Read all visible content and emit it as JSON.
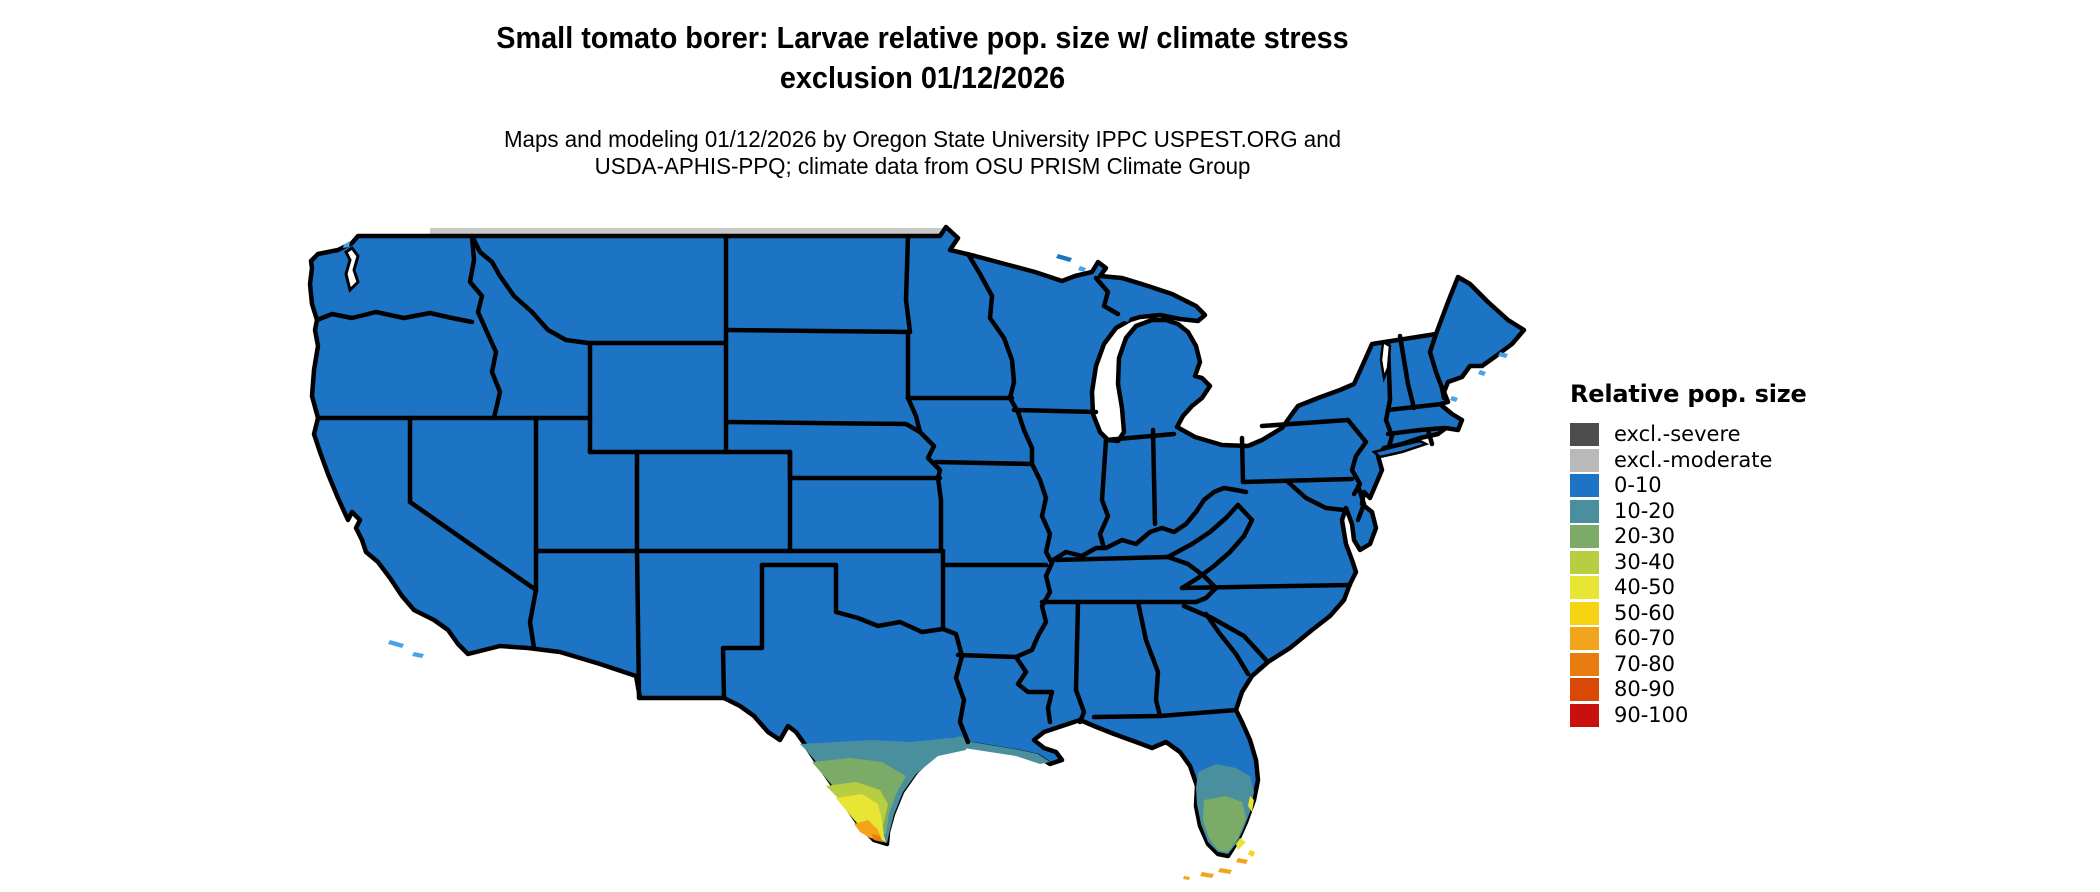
{
  "header": {
    "title_line1": "Small tomato borer: Larvae relative pop. size w/ climate stress",
    "title_line2": "exclusion 01/12/2026",
    "subtitle_line1": "Maps and modeling 01/12/2026 by Oregon State University IPPC USPEST.ORG and",
    "subtitle_line2": "USDA-APHIS-PPQ; climate data from OSU PRISM Climate Group"
  },
  "legend": {
    "title": "Relative pop. size",
    "items": [
      {
        "key": "excl_severe",
        "label": "excl.-severe",
        "color": "#4d4d4d"
      },
      {
        "key": "excl_moderate",
        "label": "excl.-moderate",
        "color": "#b9b9b9"
      },
      {
        "key": "c0_10",
        "label": "0-10",
        "color": "#1d73c4"
      },
      {
        "key": "c10_20",
        "label": "10-20",
        "color": "#4a8f9d"
      },
      {
        "key": "c20_30",
        "label": "20-30",
        "color": "#7cab68"
      },
      {
        "key": "c30_40",
        "label": "30-40",
        "color": "#b7cd42"
      },
      {
        "key": "c40_50",
        "label": "40-50",
        "color": "#e9e534"
      },
      {
        "key": "c50_60",
        "label": "50-60",
        "color": "#f6d411"
      },
      {
        "key": "c60_70",
        "label": "60-70",
        "color": "#f2a41c"
      },
      {
        "key": "c70_80",
        "label": "70-80",
        "color": "#e87c0e"
      },
      {
        "key": "c80_90",
        "label": "80-90",
        "color": "#d94804"
      },
      {
        "key": "c90_100",
        "label": "90-100",
        "color": "#c8100e"
      }
    ]
  },
  "map": {
    "region": "Contiguous United States",
    "base_category": "0-10",
    "colors": {
      "border": "#000000",
      "lake": "#ffffff",
      "water_speck": "#4aa3e6",
      "canada_edge": "#c9c9c9"
    },
    "hotspots": [
      {
        "area": "South Texas (Rio Grande Valley)",
        "categories": "10-20 through 70-80"
      },
      {
        "area": "Texas-Louisiana Gulf Coast",
        "categories": "10-20"
      },
      {
        "area": "Central and South Florida",
        "categories": "10-20 through 40-50"
      },
      {
        "area": "Florida Keys",
        "categories": "50-60 / 60-70"
      }
    ]
  }
}
